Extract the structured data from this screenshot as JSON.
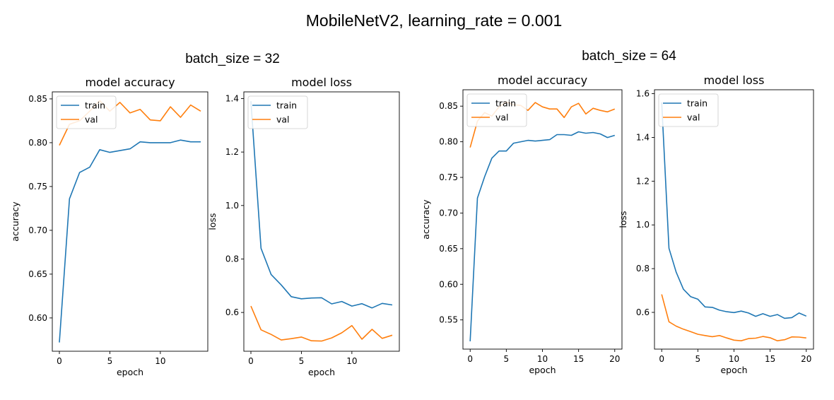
{
  "figure": {
    "title": "MobileNetV2, learning_rate = 0.001",
    "group_titles": [
      "batch_size = 32",
      "batch_size = 64"
    ]
  },
  "colors": {
    "train": "#1f77b4",
    "val": "#ff7f0e",
    "axes": "#000000"
  },
  "chart_data": [
    {
      "type": "line",
      "group": "batch_size = 32",
      "title": "model accuracy",
      "xlabel": "epoch",
      "ylabel": "accuracy",
      "xlim": [
        -0.7,
        14.7
      ],
      "ylim": [
        0.562,
        0.858
      ],
      "xticks": [
        0,
        5,
        10
      ],
      "yticks": [
        0.6,
        0.65,
        0.7,
        0.75,
        0.8,
        0.85
      ],
      "legend": {
        "position": "upper-left",
        "entries": [
          "train",
          "val"
        ]
      },
      "series": [
        {
          "name": "train",
          "x": [
            0,
            1,
            2,
            3,
            4,
            5,
            6,
            7,
            8,
            9,
            10,
            11,
            12,
            13,
            14
          ],
          "values": [
            0.572,
            0.736,
            0.766,
            0.772,
            0.792,
            0.789,
            0.791,
            0.793,
            0.801,
            0.8,
            0.8,
            0.8,
            0.803,
            0.801,
            0.801
          ]
        },
        {
          "name": "val",
          "x": [
            0,
            1,
            2,
            3,
            4,
            5,
            6,
            7,
            8,
            9,
            10,
            11,
            12,
            13,
            14
          ],
          "values": [
            0.797,
            0.821,
            0.825,
            0.836,
            0.848,
            0.836,
            0.846,
            0.834,
            0.838,
            0.826,
            0.825,
            0.841,
            0.829,
            0.843,
            0.836
          ]
        }
      ]
    },
    {
      "type": "line",
      "group": "batch_size = 32",
      "title": "model loss",
      "xlabel": "epoch",
      "ylabel": "loss",
      "xlim": [
        -0.7,
        14.7
      ],
      "ylim": [
        0.455,
        1.425
      ],
      "xticks": [
        0,
        5,
        10
      ],
      "yticks": [
        0.6,
        0.8,
        1.0,
        1.2,
        1.4
      ],
      "legend": {
        "position": "upper-left",
        "entries": [
          "train",
          "val"
        ]
      },
      "series": [
        {
          "name": "train",
          "x": [
            0,
            1,
            2,
            3,
            4,
            5,
            6,
            7,
            8,
            9,
            10,
            11,
            12,
            13,
            14
          ],
          "values": [
            1.39,
            0.84,
            0.742,
            0.703,
            0.659,
            0.651,
            0.654,
            0.655,
            0.632,
            0.641,
            0.624,
            0.633,
            0.617,
            0.634,
            0.628
          ]
        },
        {
          "name": "val",
          "x": [
            0,
            1,
            2,
            3,
            4,
            5,
            6,
            7,
            8,
            9,
            10,
            11,
            12,
            13,
            14
          ],
          "values": [
            0.624,
            0.535,
            0.518,
            0.497,
            0.502,
            0.508,
            0.494,
            0.493,
            0.505,
            0.524,
            0.551,
            0.5,
            0.537,
            0.503,
            0.515
          ]
        }
      ]
    },
    {
      "type": "line",
      "group": "batch_size = 64",
      "title": "model accuracy",
      "xlabel": "epoch",
      "ylabel": "accuracy",
      "xlim": [
        -1.0,
        21.0
      ],
      "ylim": [
        0.509,
        0.873
      ],
      "xticks": [
        0,
        5,
        10,
        15,
        20
      ],
      "yticks": [
        0.55,
        0.6,
        0.65,
        0.7,
        0.75,
        0.8,
        0.85
      ],
      "legend": {
        "position": "upper-left",
        "entries": [
          "train",
          "val"
        ]
      },
      "series": [
        {
          "name": "train",
          "x": [
            0,
            1,
            2,
            3,
            4,
            5,
            6,
            7,
            8,
            9,
            10,
            11,
            12,
            13,
            14,
            15,
            16,
            17,
            18,
            19,
            20
          ],
          "values": [
            0.52,
            0.721,
            0.751,
            0.777,
            0.787,
            0.787,
            0.798,
            0.8,
            0.802,
            0.801,
            0.802,
            0.803,
            0.81,
            0.81,
            0.809,
            0.814,
            0.812,
            0.813,
            0.811,
            0.806,
            0.809
          ]
        },
        {
          "name": "val",
          "x": [
            0,
            1,
            2,
            3,
            4,
            5,
            6,
            7,
            8,
            9,
            10,
            11,
            12,
            13,
            14,
            15,
            16,
            17,
            18,
            19,
            20
          ],
          "values": [
            0.792,
            0.829,
            0.841,
            0.836,
            0.849,
            0.856,
            0.852,
            0.851,
            0.844,
            0.855,
            0.849,
            0.846,
            0.846,
            0.834,
            0.849,
            0.854,
            0.839,
            0.847,
            0.844,
            0.842,
            0.846
          ]
        }
      ]
    },
    {
      "type": "line",
      "group": "batch_size = 64",
      "title": "model loss",
      "xlabel": "epoch",
      "ylabel": "loss",
      "xlim": [
        -1.0,
        21.0
      ],
      "ylim": [
        0.432,
        1.618
      ],
      "xticks": [
        0,
        5,
        10,
        15,
        20
      ],
      "yticks": [
        0.6,
        0.8,
        1.0,
        1.2,
        1.4,
        1.6
      ],
      "legend": {
        "position": "upper-left",
        "entries": [
          "train",
          "val"
        ]
      },
      "series": [
        {
          "name": "train",
          "x": [
            0,
            1,
            2,
            3,
            4,
            5,
            6,
            7,
            8,
            9,
            10,
            11,
            12,
            13,
            14,
            15,
            16,
            17,
            18,
            19,
            20
          ],
          "values": [
            1.56,
            0.893,
            0.784,
            0.706,
            0.672,
            0.66,
            0.625,
            0.623,
            0.61,
            0.603,
            0.599,
            0.606,
            0.597,
            0.582,
            0.594,
            0.582,
            0.59,
            0.573,
            0.576,
            0.597,
            0.583
          ]
        },
        {
          "name": "val",
          "x": [
            0,
            1,
            2,
            3,
            4,
            5,
            6,
            7,
            8,
            9,
            10,
            11,
            12,
            13,
            14,
            15,
            16,
            17,
            18,
            19,
            20
          ],
          "values": [
            0.682,
            0.557,
            0.537,
            0.523,
            0.512,
            0.5,
            0.494,
            0.489,
            0.494,
            0.483,
            0.473,
            0.47,
            0.48,
            0.482,
            0.49,
            0.484,
            0.47,
            0.475,
            0.488,
            0.487,
            0.483
          ]
        }
      ]
    }
  ]
}
